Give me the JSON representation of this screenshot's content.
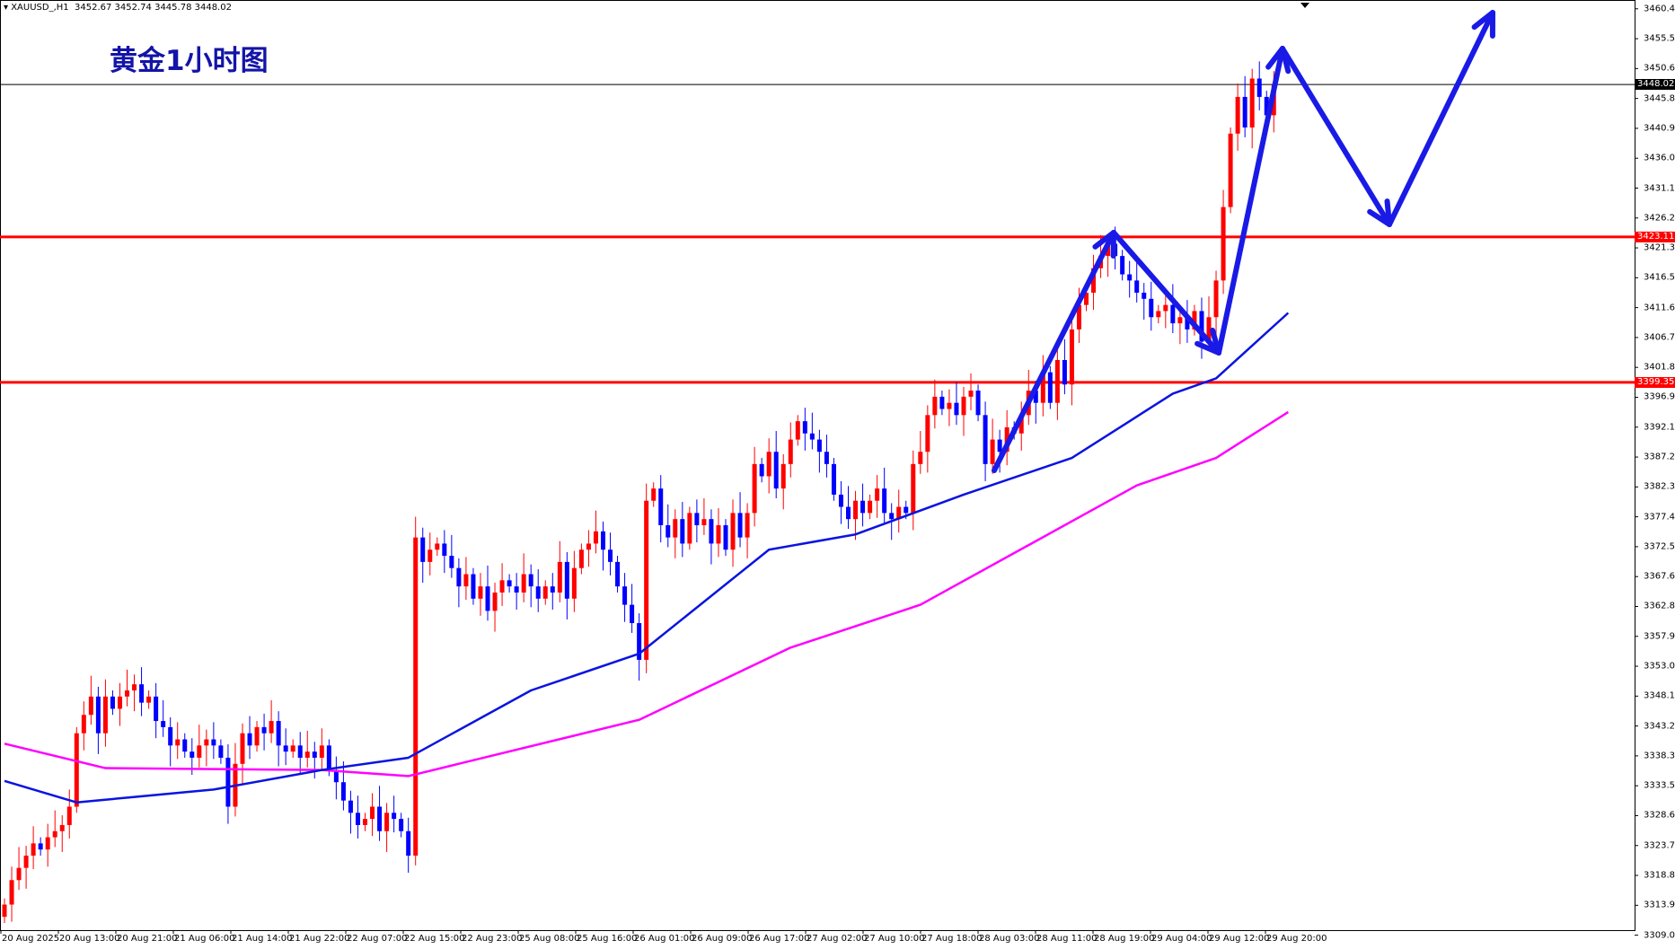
{
  "header": {
    "symbol": "XAUUSD_,H1",
    "ohlc": "3452.67 3452.74 3445.78 3448.02"
  },
  "annotation_title": "黄金1小时图",
  "colors": {
    "bull": "#ff0000",
    "bear": "#0000ff",
    "ma_fast": "#0a14e0",
    "ma_slow": "#ff00ff",
    "level": "#ff0000",
    "arrow": "#1a1ae6"
  },
  "chart_data": {
    "type": "candlestick",
    "ylim": [
      3309.0,
      3460.4
    ],
    "y_ticks": [
      "3460.40",
      "3455.50",
      "3450.60",
      "3445.80",
      "3440.90",
      "3436.00",
      "3431.10",
      "3426.20",
      "3421.30",
      "3416.50",
      "3411.60",
      "3406.70",
      "3401.80",
      "3396.90",
      "3392.10",
      "3387.20",
      "3382.30",
      "3377.40",
      "3372.50",
      "3367.60",
      "3362.80",
      "3357.90",
      "3353.00",
      "3348.10",
      "3343.20",
      "3338.30",
      "3333.50",
      "3328.60",
      "3323.70",
      "3318.80",
      "3313.90",
      "3309.00"
    ],
    "x_ticks": [
      "20 Aug 2025",
      "20 Aug 13:00",
      "20 Aug 21:00",
      "21 Aug 06:00",
      "21 Aug 14:00",
      "21 Aug 22:00",
      "22 Aug 07:00",
      "22 Aug 15:00",
      "22 Aug 23:00",
      "25 Aug 08:00",
      "25 Aug 16:00",
      "26 Aug 01:00",
      "26 Aug 09:00",
      "26 Aug 17:00",
      "27 Aug 02:00",
      "27 Aug 10:00",
      "27 Aug 18:00",
      "28 Aug 03:00",
      "28 Aug 11:00",
      "28 Aug 19:00",
      "29 Aug 04:00",
      "29 Aug 12:00",
      "29 Aug 20:00"
    ],
    "closes": [
      3314,
      3318,
      3320,
      3322,
      3324,
      3323,
      3325,
      3326,
      3327,
      3330,
      3342,
      3345,
      3348,
      3342,
      3348,
      3346,
      3348,
      3349,
      3350,
      3347,
      3348,
      3344,
      3343,
      3340,
      3341,
      3339,
      3338,
      3340,
      3341,
      3340,
      3338,
      3330,
      3337,
      3342,
      3340,
      3343,
      3342,
      3344,
      3340,
      3339,
      3340,
      3338,
      3339,
      3338,
      3340,
      3336,
      3334,
      3331,
      3329,
      3327,
      3328,
      3330,
      3326,
      3329,
      3328,
      3326,
      3322,
      3374,
      3370,
      3372,
      3373,
      3371,
      3369,
      3366,
      3368,
      3364,
      3366,
      3362,
      3365,
      3367,
      3366,
      3365,
      3368,
      3366,
      3364,
      3366,
      3365,
      3370,
      3364,
      3369,
      3372,
      3373,
      3375,
      3372,
      3370,
      3366,
      3363,
      3360,
      3354,
      3380,
      3382,
      3376,
      3374,
      3377,
      3373,
      3378,
      3376,
      3377,
      3373,
      3376,
      3372,
      3378,
      3374,
      3378,
      3386,
      3384,
      3388,
      3382,
      3386,
      3390,
      3393,
      3391,
      3390,
      3388,
      3386,
      3381,
      3379,
      3377,
      3380,
      3378,
      3380,
      3382,
      3378,
      3377,
      3379,
      3378,
      3386,
      3388,
      3394,
      3397,
      3395,
      3396,
      3394,
      3397,
      3398,
      3394,
      3386,
      3390,
      3388,
      3392,
      3391,
      3394,
      3398,
      3396,
      3401,
      3396,
      3403,
      3399,
      3408,
      3412,
      3414,
      3418,
      3420,
      3422,
      3420,
      3417,
      3416,
      3414,
      3413,
      3410,
      3411,
      3412,
      3409,
      3410,
      3408,
      3411,
      3406,
      3410,
      3416,
      3428,
      3440,
      3446,
      3441,
      3449,
      3446,
      3443,
      3448.02
    ],
    "ma_fast": [
      [
        0,
        3334.2
      ],
      [
        10,
        3330.7
      ],
      [
        29,
        3332.8
      ],
      [
        44,
        3336
      ],
      [
        56,
        3338
      ],
      [
        73,
        3349
      ],
      [
        88,
        3355
      ],
      [
        106,
        3372
      ],
      [
        118,
        3374.5
      ],
      [
        133,
        3381
      ],
      [
        148,
        3387
      ],
      [
        156,
        3393
      ],
      [
        162,
        3397.5
      ],
      [
        168,
        3400
      ],
      [
        178,
        3410.7
      ]
    ],
    "ma_slow": [
      [
        0,
        3340.3
      ],
      [
        14,
        3336.3
      ],
      [
        44,
        3336
      ],
      [
        56,
        3335
      ],
      [
        88,
        3344.2
      ],
      [
        109,
        3356
      ],
      [
        127,
        3363
      ],
      [
        157,
        3382.5
      ],
      [
        168,
        3387
      ],
      [
        178,
        3394.5
      ]
    ],
    "levels": [
      {
        "price": 3423.11,
        "label": "3423.11"
      },
      {
        "price": 3399.35,
        "label": "3399.35"
      }
    ],
    "current_price": {
      "price": 3448.02,
      "label": "3448.02"
    }
  }
}
